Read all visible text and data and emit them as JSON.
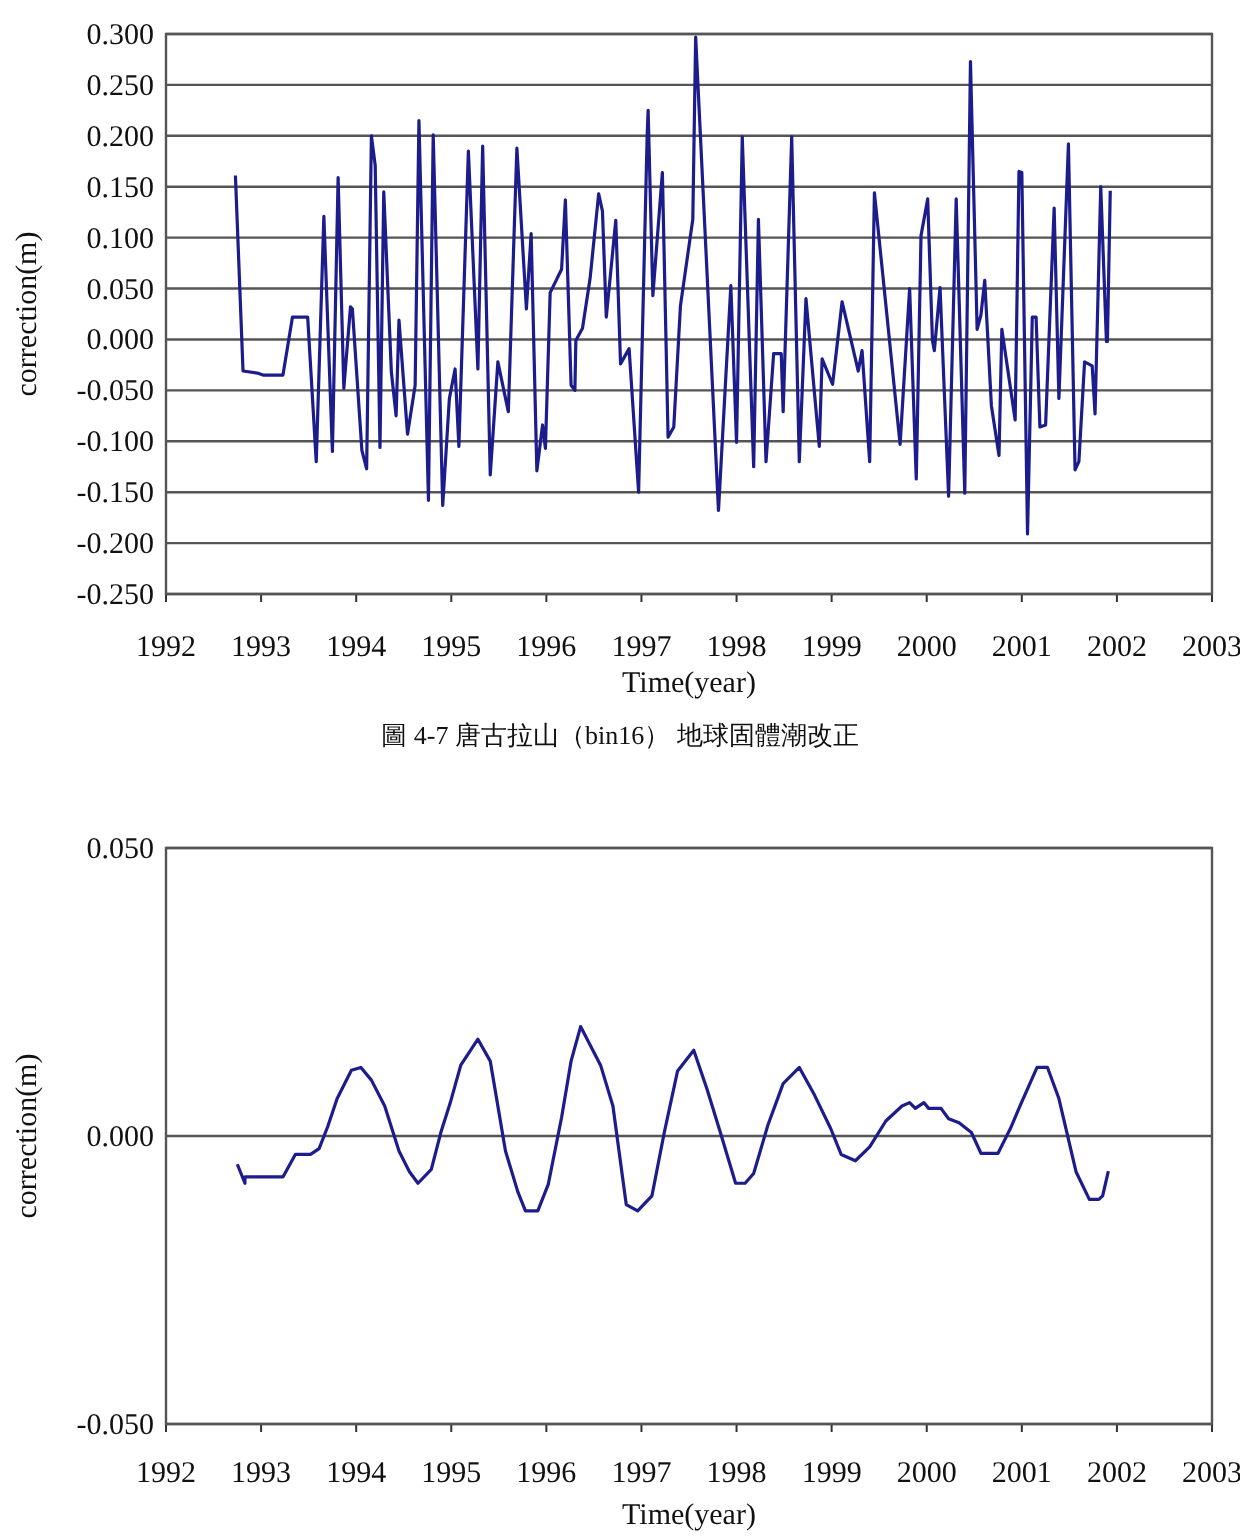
{
  "chart_data": [
    {
      "type": "line",
      "color": "#1c1c8c",
      "xlabel": "Time(year)",
      "ylabel": "correction(m)",
      "grid": "y",
      "annotations": [
        "圖 4-7 唐古拉山（bin16） 地球固體潮改正"
      ],
      "xlim": [
        1992,
        2003
      ],
      "xticks": [
        1992,
        1993,
        1994,
        1995,
        1996,
        1997,
        1998,
        1999,
        2000,
        2001,
        2002,
        2003
      ],
      "ylim": [
        -0.25,
        0.3
      ],
      "yticks": [
        {
          "value": -0.25,
          "label": "-0.250"
        },
        {
          "value": -0.2,
          "label": "-0.200"
        },
        {
          "value": -0.15,
          "label": "-0.150"
        },
        {
          "value": -0.1,
          "label": "-0.100"
        },
        {
          "value": -0.05,
          "label": "-0.050"
        },
        {
          "value": 0,
          "label": "0.000"
        },
        {
          "value": 0.05,
          "label": "0.050"
        },
        {
          "value": 0.1,
          "label": "0.100"
        },
        {
          "value": 0.15,
          "label": "0.150"
        },
        {
          "value": 0.2,
          "label": "0.200"
        },
        {
          "value": 0.25,
          "label": "0.250"
        },
        {
          "value": 0.3,
          "label": "0.300"
        }
      ],
      "x": [
        1992.73,
        1992.81,
        1992.96,
        1993.02,
        1993.23,
        1993.33,
        1993.49,
        1993.58,
        1993.66,
        1993.75,
        1993.81,
        1993.87,
        1993.94,
        1993.96,
        1994.06,
        1994.11,
        1994.16,
        1994.2,
        1994.25,
        1994.29,
        1994.37,
        1994.42,
        1994.45,
        1994.54,
        1994.62,
        1994.66,
        1994.76,
        1994.81,
        1994.91,
        1994.98,
        1995.04,
        1995.08,
        1995.18,
        1995.28,
        1995.33,
        1995.41,
        1995.49,
        1995.6,
        1995.69,
        1995.79,
        1995.84,
        1995.9,
        1995.96,
        1995.99,
        1996.04,
        1996.16,
        1996.2,
        1996.26,
        1996.3,
        1996.31,
        1996.38,
        1996.46,
        1996.55,
        1996.59,
        1996.63,
        1996.73,
        1996.78,
        1996.87,
        1996.97,
        1997.06,
        1997.07,
        1997.12,
        1997.22,
        1997.28,
        1997.34,
        1997.41,
        1997.54,
        1997.57,
        1997.81,
        1997.94,
        1998.0,
        1998.06,
        1998.18,
        1998.23,
        1998.31,
        1998.39,
        1998.47,
        1998.49,
        1998.58,
        1998.66,
        1998.73,
        1998.87,
        1998.9,
        1999.01,
        1999.11,
        1999.28,
        1999.32,
        1999.4,
        1999.45,
        1999.72,
        1999.82,
        1999.89,
        1999.94,
        2000.01,
        2000.06,
        2000.08,
        2000.14,
        2000.23,
        2000.31,
        2000.4,
        2000.46,
        2000.53,
        2000.57,
        2000.61,
        2000.68,
        2000.76,
        2000.79,
        2000.93,
        2000.97,
        2001.0,
        2001.06,
        2001.11,
        2001.15,
        2001.19,
        2001.25,
        2001.34,
        2001.39,
        2001.49,
        2001.56,
        2001.6,
        2001.66,
        2001.74,
        2001.77,
        2001.83,
        2001.89,
        2001.9,
        2001.93
      ],
      "values": [
        0.161,
        -0.031,
        -0.033,
        -0.035,
        -0.035,
        0.022,
        0.022,
        -0.12,
        0.121,
        -0.11,
        0.159,
        -0.048,
        0.032,
        0.03,
        -0.109,
        -0.127,
        0.2,
        0.171,
        -0.106,
        0.145,
        -0.032,
        -0.075,
        0.019,
        -0.093,
        -0.045,
        0.215,
        -0.158,
        0.201,
        -0.163,
        -0.058,
        -0.029,
        -0.105,
        0.185,
        -0.029,
        0.19,
        -0.133,
        -0.022,
        -0.071,
        0.188,
        0.03,
        0.104,
        -0.129,
        -0.084,
        -0.107,
        0.046,
        0.069,
        0.137,
        -0.045,
        -0.05,
        -0.001,
        0.011,
        0.06,
        0.143,
        0.126,
        0.022,
        0.117,
        -0.024,
        -0.009,
        -0.15,
        0.2,
        0.225,
        0.043,
        0.164,
        -0.096,
        -0.086,
        0.033,
        0.118,
        0.297,
        -0.168,
        0.053,
        -0.101,
        0.199,
        -0.125,
        0.118,
        -0.12,
        -0.014,
        -0.014,
        -0.071,
        0.199,
        -0.12,
        0.04,
        -0.105,
        -0.019,
        -0.044,
        0.037,
        -0.031,
        -0.011,
        -0.12,
        0.144,
        -0.103,
        0.05,
        -0.137,
        0.102,
        0.138,
        -0.001,
        -0.011,
        0.051,
        -0.154,
        0.138,
        -0.151,
        0.273,
        0.01,
        0.024,
        0.058,
        -0.065,
        -0.114,
        0.01,
        -0.079,
        0.165,
        0.164,
        -0.191,
        0.022,
        0.022,
        -0.086,
        -0.084,
        0.129,
        -0.058,
        0.192,
        -0.128,
        -0.12,
        -0.022,
        -0.026,
        -0.073,
        0.15,
        -0.002,
        -0.002,
        0.146
      ]
    },
    {
      "type": "line",
      "color": "#1c1c8c",
      "xlabel": "Time(year)",
      "ylabel": "correction(m)",
      "grid": "y",
      "xlim": [
        1992,
        2003
      ],
      "xticks": [
        1992,
        1993,
        1994,
        1995,
        1996,
        1997,
        1998,
        1999,
        2000,
        2001,
        2002,
        2003
      ],
      "ylim": [
        -0.05,
        0.05
      ],
      "yticks": [
        {
          "value": -0.05,
          "label": "-0.050"
        },
        {
          "value": 0,
          "label": "0.000"
        },
        {
          "value": 0.05,
          "label": "0.050"
        }
      ],
      "x": [
        1992.75,
        1992.83,
        1992.83,
        1993.23,
        1993.36,
        1993.52,
        1993.61,
        1993.7,
        1993.8,
        1993.95,
        1994.05,
        1994.16,
        1994.3,
        1994.45,
        1994.56,
        1994.65,
        1994.79,
        1994.89,
        1994.99,
        1995.1,
        1995.28,
        1995.41,
        1995.57,
        1995.7,
        1995.78,
        1995.91,
        1996.02,
        1996.16,
        1996.26,
        1996.36,
        1996.57,
        1996.7,
        1996.84,
        1996.96,
        1997.11,
        1997.24,
        1997.38,
        1997.55,
        1997.69,
        1997.83,
        1997.99,
        1998.09,
        1998.18,
        1998.33,
        1998.49,
        1998.66,
        1998.82,
        1998.99,
        1999.1,
        1999.25,
        1999.4,
        1999.57,
        1999.74,
        1999.82,
        1999.88,
        1999.97,
        2000.02,
        2000.15,
        2000.23,
        2000.34,
        2000.47,
        2000.57,
        2000.75,
        2000.88,
        2000.98,
        2001.16,
        2001.27,
        2001.39,
        2001.57,
        2001.71,
        2001.81,
        2001.85,
        2001.91
      ],
      "values": [
        -0.0049,
        -0.0082,
        -0.0071,
        -0.0071,
        -0.0032,
        -0.0032,
        -0.0022,
        0.0016,
        0.0065,
        0.0114,
        0.0119,
        0.0097,
        0.0052,
        -0.0026,
        -0.0062,
        -0.0082,
        -0.0058,
        0.0006,
        0.0058,
        0.0123,
        0.0168,
        0.013,
        -0.0026,
        -0.0097,
        -0.013,
        -0.013,
        -0.0084,
        0.0032,
        0.013,
        0.019,
        0.0123,
        0.0052,
        -0.0119,
        -0.013,
        -0.0104,
        0.0006,
        0.0113,
        0.0149,
        0.0081,
        0.0006,
        -0.0082,
        -0.0082,
        -0.0065,
        0.0019,
        0.0091,
        0.0119,
        0.0071,
        0.0013,
        -0.0032,
        -0.0043,
        -0.0019,
        0.0026,
        0.0052,
        0.0058,
        0.0048,
        0.0058,
        0.0048,
        0.0048,
        0.003,
        0.0023,
        0.0006,
        -0.003,
        -0.003,
        0.0013,
        0.0052,
        0.0119,
        0.0119,
        0.0065,
        -0.0062,
        -0.011,
        -0.011,
        -0.0104,
        -0.0061
      ]
    }
  ]
}
